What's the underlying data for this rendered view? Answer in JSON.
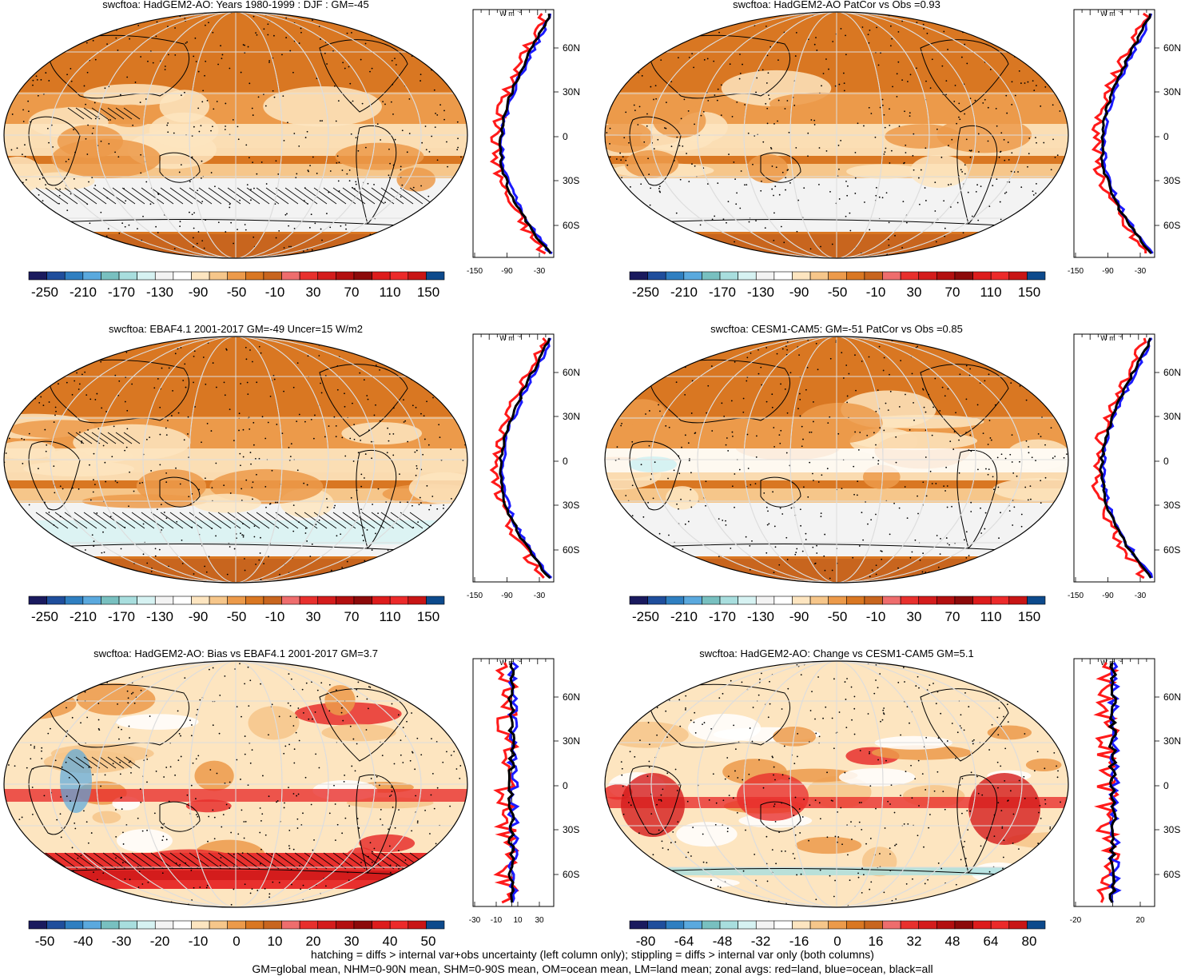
{
  "panels": [
    {
      "title": "swcftoa: HadGEM2-AO: Years 1980-1999 : DJF : GM=-45",
      "colorbar": [
        "-250",
        "-210",
        "-170",
        "-130",
        "-90",
        "-50",
        "-10",
        "30",
        "70",
        "110",
        "150"
      ],
      "profile_ticks": [
        "-150",
        "-90",
        "-30"
      ],
      "hatch": true
    },
    {
      "title": "swcftoa: HadGEM2-AO PatCor vs Obs =0.93",
      "colorbar": [
        "-250",
        "-210",
        "-170",
        "-130",
        "-90",
        "-50",
        "-10",
        "30",
        "70",
        "110",
        "150"
      ],
      "profile_ticks": [
        "-150",
        "-90",
        "-30"
      ],
      "hatch": false
    },
    {
      "title": "swcftoa: EBAF4.1 2001-2017 GM=-49 Uncer=15 W/m2",
      "colorbar": [
        "-250",
        "-210",
        "-170",
        "-130",
        "-90",
        "-50",
        "-10",
        "30",
        "70",
        "110",
        "150"
      ],
      "profile_ticks": [
        "-150",
        "-90",
        "-30"
      ],
      "hatch": true
    },
    {
      "title": "swcftoa: CESM1-CAM5: GM=-51 PatCor vs Obs =0.85",
      "colorbar": [
        "-250",
        "-210",
        "-170",
        "-130",
        "-90",
        "-50",
        "-10",
        "30",
        "70",
        "110",
        "150"
      ],
      "profile_ticks": [
        "-150",
        "-90",
        "-30"
      ],
      "hatch": false
    },
    {
      "title": "swcftoa: HadGEM2-AO: Bias vs EBAF4.1 2001-2017 GM=3.7",
      "colorbar": [
        "-50",
        "-40",
        "-30",
        "-20",
        "-10",
        "0",
        "10",
        "20",
        "30",
        "40",
        "50"
      ],
      "profile_ticks": [
        "-30",
        "-10",
        "10",
        "30"
      ],
      "hatch": true
    },
    {
      "title": "swcftoa: HadGEM2-AO: Change vs CESM1-CAM5 GM=5.1",
      "colorbar": [
        "-80",
        "-64",
        "-48",
        "-32",
        "-16",
        "0",
        "16",
        "32",
        "48",
        "64",
        "80"
      ],
      "profile_ticks": [
        "-20",
        "20"
      ],
      "hatch": false
    }
  ],
  "profile_unit": "W m",
  "profile_unit_sup": "-2",
  "lat_labels": [
    "60N",
    "30N",
    "0",
    "30S",
    "60S"
  ],
  "colors": {
    "palette": [
      "#1a1a5e",
      "#1f4e9c",
      "#2f7fc1",
      "#5aa9de",
      "#78c0c0",
      "#a8dede",
      "#d6f2f2",
      "#f3f3f3",
      "#ffffff",
      "#fde5c0",
      "#f6c68a",
      "#ec9a4a",
      "#d97722",
      "#c8651e",
      "#ee6d6d",
      "#e8302d",
      "#d41c1c",
      "#b30f0f",
      "#8c0a0a",
      "#dd1c1c",
      "#ec2a2a",
      "#c81515",
      "#0d4a8c"
    ],
    "land_line": "#ff1a1a",
    "ocean_line": "#1a1aff",
    "all_line": "#000000"
  },
  "footer": [
    "hatching = diffs > internal var+obs uncertainty (left column only); stippling = diffs > internal var only (both columns)",
    "GM=global mean, NHM=0-90N mean, SHM=0-90S mean, OM=ocean mean, LM=land mean; zonal avgs: red=land, blue=ocean, black=all"
  ]
}
